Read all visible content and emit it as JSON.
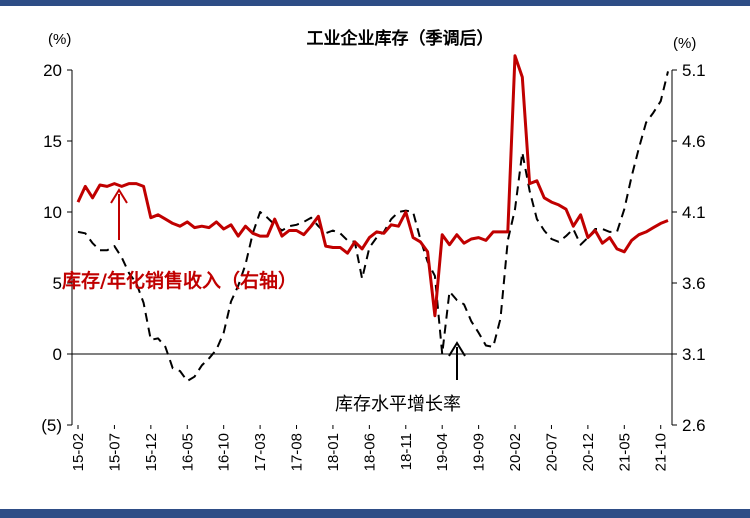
{
  "chart_data": {
    "type": "line",
    "title": "工业企业库存（季调后）",
    "left_axis": {
      "unit": "(%)",
      "ticks": [
        "20",
        "15",
        "10",
        "5",
        "0",
        "(5)"
      ],
      "ylim": [
        -5,
        20
      ]
    },
    "right_axis": {
      "unit": "(%)",
      "ticks": [
        "5.1",
        "4.6",
        "4.1",
        "3.6",
        "3.1",
        "2.6"
      ],
      "ylim": [
        2.6,
        5.1
      ]
    },
    "x_tick_labels": [
      "15-02",
      "15-07",
      "15-12",
      "16-05",
      "16-10",
      "17-03",
      "17-08",
      "18-01",
      "18-06",
      "18-11",
      "19-04",
      "19-09",
      "20-02",
      "20-07",
      "20-12",
      "21-05",
      "21-10"
    ],
    "annotations": {
      "red": "库存/年化销售收入（右轴）",
      "black": "库存水平增长率"
    },
    "series": [
      {
        "name": "库存水平增长率",
        "axis": "left",
        "color": "#000000",
        "style": "dashed",
        "x": [
          "15-02",
          "15-03",
          "15-04",
          "15-05",
          "15-06",
          "15-07",
          "15-08",
          "15-09",
          "15-10",
          "15-11",
          "15-12",
          "16-01",
          "16-02",
          "16-03",
          "16-04",
          "16-05",
          "16-06",
          "16-07",
          "16-08",
          "16-09",
          "16-10",
          "16-11",
          "16-12",
          "17-01",
          "17-02",
          "17-03",
          "17-04",
          "17-05",
          "17-06",
          "17-07",
          "17-08",
          "17-09",
          "17-10",
          "17-11",
          "17-12",
          "18-01",
          "18-02",
          "18-03",
          "18-04",
          "18-05",
          "18-06",
          "18-07",
          "18-08",
          "18-09",
          "18-10",
          "18-11",
          "18-12",
          "19-01",
          "19-02",
          "19-03",
          "19-04",
          "19-05",
          "19-06",
          "19-07",
          "19-08",
          "19-09",
          "19-10",
          "19-11",
          "19-12",
          "20-01",
          "20-02",
          "20-03",
          "20-04",
          "20-05",
          "20-06",
          "20-07",
          "20-08",
          "20-09",
          "20-10",
          "20-11",
          "20-12",
          "21-01",
          "21-02",
          "21-03",
          "21-04",
          "21-05",
          "21-06",
          "21-07",
          "21-08",
          "21-09",
          "21-10",
          "21-11"
        ],
        "values": [
          8.6,
          8.5,
          7.8,
          7.3,
          7.3,
          7.6,
          6.8,
          5.7,
          5.0,
          3.6,
          1.0,
          1.1,
          0.5,
          -1.0,
          -1.2,
          -1.9,
          -1.6,
          -0.8,
          -0.3,
          0.3,
          1.5,
          3.7,
          4.8,
          6.3,
          8.5,
          10.0,
          9.6,
          9.1,
          8.7,
          9.0,
          9.1,
          9.3,
          9.6,
          9.0,
          8.5,
          8.7,
          8.5,
          8.0,
          7.9,
          5.3,
          7.5,
          8.2,
          8.6,
          9.5,
          10.0,
          10.1,
          10.0,
          8.1,
          6.5,
          5.5,
          0.0,
          4.4,
          3.8,
          3.5,
          2.3,
          1.5,
          0.6,
          0.5,
          2.5,
          8.0,
          10.2,
          14.2,
          11.5,
          9.5,
          8.7,
          8.1,
          7.9,
          8.3,
          8.8,
          7.7,
          8.2,
          8.8,
          8.8,
          8.6,
          8.6,
          10.2,
          12.5,
          14.5,
          16.3,
          17.0,
          17.8,
          19.9
        ]
      },
      {
        "name": "库存/年化销售收入",
        "axis": "right",
        "color": "#c00000",
        "style": "solid",
        "x": [
          "15-02",
          "15-03",
          "15-04",
          "15-05",
          "15-06",
          "15-07",
          "15-08",
          "15-09",
          "15-10",
          "15-11",
          "15-12",
          "16-01",
          "16-02",
          "16-03",
          "16-04",
          "16-05",
          "16-06",
          "16-07",
          "16-08",
          "16-09",
          "16-10",
          "16-11",
          "16-12",
          "17-01",
          "17-02",
          "17-03",
          "17-04",
          "17-05",
          "17-06",
          "17-07",
          "17-08",
          "17-09",
          "17-10",
          "17-11",
          "17-12",
          "18-01",
          "18-02",
          "18-03",
          "18-04",
          "18-05",
          "18-06",
          "18-07",
          "18-08",
          "18-09",
          "18-10",
          "18-11",
          "18-12",
          "19-01",
          "19-02",
          "19-03",
          "19-04",
          "19-05",
          "19-06",
          "19-07",
          "19-08",
          "19-09",
          "19-10",
          "19-11",
          "19-12",
          "20-01",
          "20-02",
          "20-03",
          "20-04",
          "20-05",
          "20-06",
          "20-07",
          "20-08",
          "20-09",
          "20-10",
          "20-11",
          "20-12",
          "21-01",
          "21-02",
          "21-03",
          "21-04",
          "21-05",
          "21-06",
          "21-07",
          "21-08",
          "21-09",
          "21-10",
          "21-11"
        ],
        "values": [
          4.17,
          4.28,
          4.2,
          4.29,
          4.28,
          4.3,
          4.28,
          4.3,
          4.3,
          4.28,
          4.06,
          4.08,
          4.05,
          4.02,
          4.0,
          4.03,
          3.99,
          4.0,
          3.99,
          4.03,
          3.98,
          4.01,
          3.93,
          4.0,
          3.95,
          3.93,
          3.93,
          4.05,
          3.93,
          3.97,
          3.97,
          3.94,
          4.0,
          4.07,
          3.86,
          3.85,
          3.85,
          3.81,
          3.89,
          3.84,
          3.92,
          3.96,
          3.95,
          4.01,
          4.0,
          4.1,
          3.92,
          3.89,
          3.82,
          3.37,
          3.94,
          3.87,
          3.94,
          3.88,
          3.91,
          3.92,
          3.9,
          3.96,
          3.96,
          3.96,
          5.2,
          5.05,
          4.3,
          4.32,
          4.2,
          4.17,
          4.15,
          4.12,
          4.0,
          4.08,
          3.92,
          3.97,
          3.88,
          3.92,
          3.84,
          3.82,
          3.9,
          3.94,
          3.96,
          3.99,
          4.02,
          4.04
        ]
      }
    ]
  }
}
